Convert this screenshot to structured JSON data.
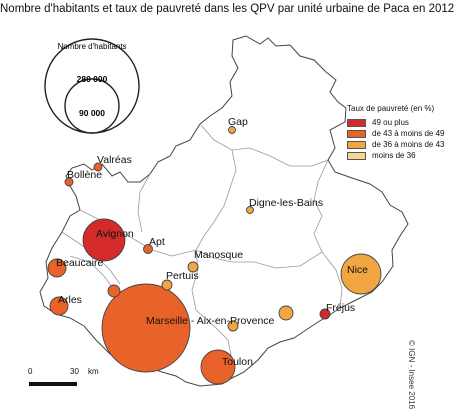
{
  "title": "Nombre d'habitants et taux de pauvreté dans les QPV par unité urbaine de Paca en 2012",
  "size_legend": {
    "title": "Nombre d'habitants",
    "large_value": "280 000",
    "small_value": "90 000"
  },
  "color_legend": {
    "title": "Taux de pauvreté (en %)",
    "classes": [
      {
        "label": "49 ou plus",
        "color": "#d42a2a"
      },
      {
        "label": "de 43 à moins de 49",
        "color": "#e8622a"
      },
      {
        "label": "de 36 à moins de 43",
        "color": "#f2a642"
      },
      {
        "label": "moins de 36",
        "color": "#f8d496"
      }
    ]
  },
  "scale_bar": {
    "start": "0",
    "end": "30",
    "unit": "km"
  },
  "copyright": "© IGN - Insee 2016",
  "colors": {
    "border": "#9a9a9a",
    "outline": "#444444"
  },
  "cities": [
    {
      "name": "Gap",
      "class": 2
    },
    {
      "name": "Valréas",
      "class": 1
    },
    {
      "name": "Bollène",
      "class": 1
    },
    {
      "name": "Digne-les-Bains",
      "class": 2
    },
    {
      "name": "Avignon",
      "class": 0
    },
    {
      "name": "Apt",
      "class": 1
    },
    {
      "name": "Manosque",
      "class": 2
    },
    {
      "name": "Beaucaire",
      "class": 1
    },
    {
      "name": "Pertuis",
      "class": 2
    },
    {
      "name": "Nice",
      "class": 2
    },
    {
      "name": "Arles",
      "class": 1
    },
    {
      "name": "Marseille - Aix-en-Provence",
      "class": 1
    },
    {
      "name": "Fréjus",
      "class": 0
    },
    {
      "name": "Toulon",
      "class": 1
    }
  ]
}
